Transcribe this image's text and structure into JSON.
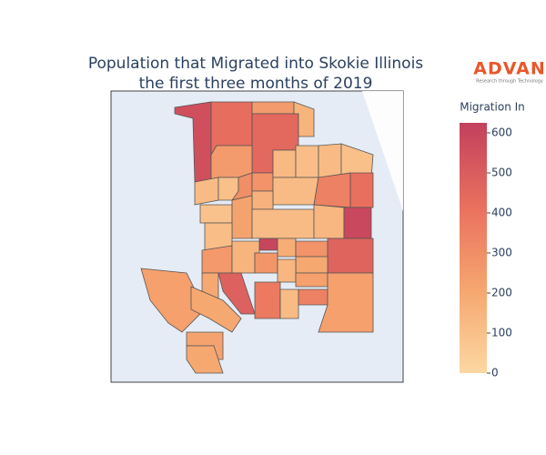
{
  "chart_data": {
    "type": "choropleth",
    "title": [
      "Population that Migrated into Skokie Illinois",
      "the first three months of 2019"
    ],
    "logo": {
      "name": "ADVAN",
      "tagline": "Research through Technology"
    },
    "colorbar": {
      "title": "Migration In",
      "lim": [
        0,
        625
      ],
      "ticks": [
        0,
        100,
        200,
        300,
        400,
        500,
        600
      ],
      "colorscale": [
        "#fcd8a2",
        "#f6a66f",
        "#e9705e",
        "#c3405d"
      ]
    },
    "values": [
      560,
      430,
      250,
      450,
      150,
      250,
      120,
      100,
      300,
      280,
      130,
      110,
      120,
      100,
      120,
      350,
      420,
      160,
      90,
      220,
      120,
      140,
      590,
      110,
      600,
      180,
      280,
      470,
      260,
      150,
      270,
      200,
      140,
      230,
      230,
      480,
      200,
      380,
      120,
      350,
      230,
      200,
      220,
      200
    ]
  }
}
